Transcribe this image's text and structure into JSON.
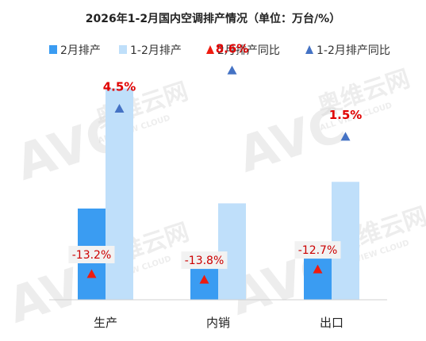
{
  "chart_data": {
    "type": "bar",
    "title": "2026年1-2月国内空调排产情况（单位：万台/%）",
    "categories": [
      "生产",
      "内销",
      "出口"
    ],
    "series": [
      {
        "name": "2月排产",
        "kind": "bar",
        "color": "#3a9cf2",
        "values": [
          1230,
          565,
          635
        ]
      },
      {
        "name": "1-2月排产",
        "kind": "bar",
        "color": "#bfdffa",
        "values": [
          2850,
          1300,
          1590
        ]
      },
      {
        "name": "2月排产同比",
        "kind": "marker",
        "color": "#ee1b0f",
        "values": [
          -13.2,
          -13.8,
          -12.7
        ],
        "labels": [
          "-13.2%",
          "-13.8%",
          "-12.7%"
        ]
      },
      {
        "name": "1-2月排产同比",
        "kind": "marker",
        "color": "#4472c4",
        "values": [
          4.5,
          8.6,
          1.5
        ],
        "labels": [
          "4.5%",
          "8.6%",
          "1.5%"
        ]
      }
    ],
    "bar_range": [
      0,
      3400
    ],
    "pct_range": [
      -16,
      11
    ],
    "grid": false,
    "legend_position": "top"
  },
  "watermark": {
    "brand": "AVC",
    "cn_name": "奥维云网",
    "en_name": "ALL VIEW CLOUD"
  }
}
